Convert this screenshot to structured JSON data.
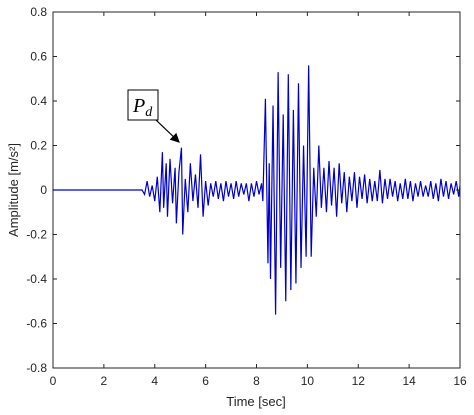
{
  "chart_data": {
    "type": "line",
    "xlabel": "Time [sec]",
    "ylabel": "Amplitude [m/s²]",
    "annotation": {
      "symbol": "P",
      "subscript": "d"
    },
    "xlim": [
      0,
      16
    ],
    "xticks": [
      0,
      2,
      4,
      6,
      8,
      10,
      12,
      14,
      16
    ],
    "ylim": [
      -0.8,
      0.8
    ],
    "yticks": [
      0.8,
      0.6,
      0.4,
      0.2,
      0,
      -0.2,
      -0.4,
      -0.6,
      -0.8
    ],
    "x": [
      0,
      3.5,
      3.6,
      3.7,
      3.8,
      3.9,
      4.0,
      4.1,
      4.2,
      4.3,
      4.35,
      4.45,
      4.5,
      4.6,
      4.7,
      4.8,
      4.85,
      4.95,
      5.05,
      5.1,
      5.2,
      5.3,
      5.4,
      5.5,
      5.6,
      5.7,
      5.8,
      5.9,
      6.0,
      6.1,
      6.2,
      6.3,
      6.4,
      6.5,
      6.6,
      6.7,
      6.8,
      6.9,
      7.0,
      7.1,
      7.2,
      7.3,
      7.4,
      7.5,
      7.6,
      7.7,
      7.8,
      7.9,
      8.0,
      8.1,
      8.2,
      8.25,
      8.35,
      8.45,
      8.5,
      8.55,
      8.65,
      8.75,
      8.85,
      8.95,
      9.05,
      9.15,
      9.25,
      9.35,
      9.45,
      9.55,
      9.65,
      9.75,
      9.85,
      9.95,
      10.05,
      10.15,
      10.25,
      10.35,
      10.45,
      10.55,
      10.65,
      10.75,
      10.85,
      10.95,
      11.05,
      11.15,
      11.25,
      11.35,
      11.45,
      11.55,
      11.65,
      11.75,
      11.85,
      11.95,
      12.05,
      12.15,
      12.25,
      12.35,
      12.45,
      12.55,
      12.65,
      12.75,
      12.85,
      12.95,
      13.05,
      13.15,
      13.25,
      13.35,
      13.45,
      13.55,
      13.65,
      13.75,
      13.85,
      13.95,
      14.05,
      14.15,
      14.25,
      14.35,
      14.45,
      14.55,
      14.65,
      14.75,
      14.85,
      14.95,
      15.05,
      15.15,
      15.25,
      15.35,
      15.45,
      15.55,
      15.65,
      15.75,
      15.85,
      15.95,
      16
    ],
    "series": [
      {
        "color": "#0000cc",
        "values": [
          0,
          0,
          -0.02,
          0.04,
          -0.03,
          0.02,
          -0.05,
          0.06,
          -0.1,
          0.17,
          -0.08,
          0.12,
          -0.12,
          0.14,
          -0.06,
          0.1,
          -0.15,
          0.08,
          0.19,
          -0.2,
          0.05,
          -0.1,
          0.12,
          -0.05,
          0.07,
          -0.08,
          0.16,
          -0.12,
          0.04,
          -0.07,
          0.03,
          -0.03,
          0.04,
          -0.04,
          0.03,
          -0.05,
          0.04,
          -0.03,
          0.03,
          -0.04,
          0.04,
          -0.03,
          0.03,
          -0.02,
          0.03,
          -0.05,
          0.03,
          -0.03,
          0.04,
          -0.02,
          0.03,
          -0.05,
          0.41,
          -0.33,
          0.12,
          -0.4,
          0.38,
          -0.56,
          0.53,
          -0.35,
          0.34,
          -0.5,
          0.52,
          -0.45,
          0.36,
          -0.42,
          0.48,
          -0.35,
          0.2,
          -0.3,
          0.56,
          -0.3,
          0.1,
          -0.12,
          0.2,
          -0.08,
          0.1,
          -0.1,
          0.13,
          -0.07,
          0.1,
          -0.12,
          0.12,
          -0.06,
          0.08,
          -0.1,
          0.06,
          -0.05,
          0.08,
          -0.08,
          0.06,
          -0.04,
          0.07,
          -0.06,
          0.05,
          -0.05,
          0.04,
          -0.05,
          0.09,
          -0.06,
          0.05,
          -0.04,
          0.05,
          -0.03,
          0.04,
          -0.05,
          0.03,
          -0.04,
          0.05,
          -0.04,
          0.04,
          -0.05,
          0.03,
          -0.03,
          0.04,
          -0.03,
          0.02,
          -0.03,
          0.04,
          -0.04,
          0.03,
          -0.05,
          0.05,
          -0.03,
          0.04,
          -0.04,
          0.03,
          -0.02,
          0.04,
          -0.03,
          0.02
        ]
      }
    ]
  }
}
